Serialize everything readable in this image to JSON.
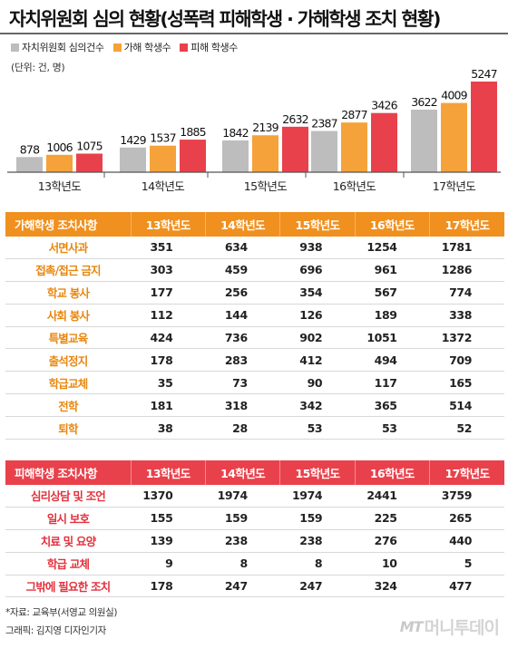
{
  "title": "자치위원회 심의 현황(성폭력 피해학생 · 가해학생 조치 현황)",
  "unit": "(단위: 건, 명)",
  "colors": {
    "committee": "#bdbdbd",
    "offender": "#f5a23a",
    "victim": "#e9414b",
    "orange_header": "#f0901e",
    "red_header": "#e9414b"
  },
  "chart_data": {
    "type": "bar",
    "categories": [
      "13학년도",
      "14학년도",
      "15학년도",
      "16학년도",
      "17학년도"
    ],
    "series": [
      {
        "name": "자치위원회 심의건수",
        "values": [
          878,
          1429,
          1842,
          2387,
          3622
        ]
      },
      {
        "name": "가해 학생수",
        "values": [
          1006,
          1537,
          2139,
          2877,
          4009
        ]
      },
      {
        "name": "피해 학생수",
        "values": [
          1075,
          1885,
          2632,
          3426,
          5247
        ]
      }
    ],
    "title": "",
    "xlabel": "",
    "ylabel": "",
    "ylim": [
      0,
      5247
    ],
    "grid": false,
    "legend": "top-left"
  },
  "offender_table": {
    "header": "가해학생 조치사항",
    "years": [
      "13학년도",
      "14학년도",
      "15학년도",
      "16학년도",
      "17학년도"
    ],
    "rows": [
      {
        "label": "서면사과",
        "values": [
          "351",
          "634",
          "938",
          "1254",
          "1781"
        ]
      },
      {
        "label": "접촉/접근 금지",
        "values": [
          "303",
          "459",
          "696",
          "961",
          "1286"
        ]
      },
      {
        "label": "학교 봉사",
        "values": [
          "177",
          "256",
          "354",
          "567",
          "774"
        ]
      },
      {
        "label": "사회 봉사",
        "values": [
          "112",
          "144",
          "126",
          "189",
          "338"
        ]
      },
      {
        "label": "특별교육",
        "values": [
          "424",
          "736",
          "902",
          "1051",
          "1372"
        ]
      },
      {
        "label": "출석정지",
        "values": [
          "178",
          "283",
          "412",
          "494",
          "709"
        ]
      },
      {
        "label": "학급교체",
        "values": [
          "35",
          "73",
          "90",
          "117",
          "165"
        ]
      },
      {
        "label": "전학",
        "values": [
          "181",
          "318",
          "342",
          "365",
          "514"
        ]
      },
      {
        "label": "퇴학",
        "values": [
          "38",
          "28",
          "53",
          "53",
          "52"
        ]
      }
    ]
  },
  "victim_table": {
    "header": "피해학생 조치사항",
    "years": [
      "13학년도",
      "14학년도",
      "15학년도",
      "16학년도",
      "17학년도"
    ],
    "rows": [
      {
        "label": "심리상담 및 조언",
        "values": [
          "1370",
          "1974",
          "1974",
          "2441",
          "3759"
        ]
      },
      {
        "label": "일시 보호",
        "values": [
          "155",
          "159",
          "159",
          "225",
          "265"
        ]
      },
      {
        "label": "치료 및 요양",
        "values": [
          "139",
          "238",
          "238",
          "276",
          "440"
        ]
      },
      {
        "label": "학급 교체",
        "values": [
          "9",
          "8",
          "8",
          "10",
          "5"
        ]
      },
      {
        "label": "그밖에 필요한 조치",
        "values": [
          "178",
          "247",
          "247",
          "324",
          "477"
        ]
      }
    ]
  },
  "source": "*자료: 교육부(서영교 의원실)",
  "credit": "그래픽: 김지영 디자인기자",
  "logo": {
    "mark": "MT",
    "name": "머니투데이"
  }
}
